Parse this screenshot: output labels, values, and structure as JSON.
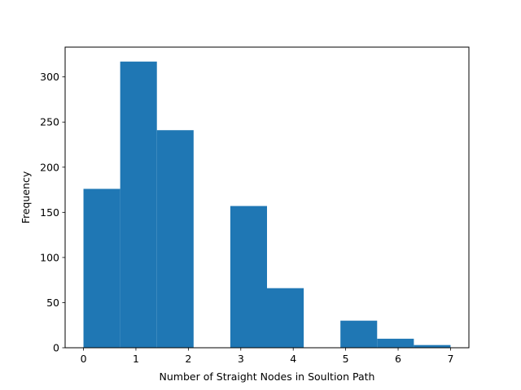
{
  "chart_data": {
    "type": "bar",
    "title": "",
    "xlabel": "Number of Straight Nodes in Soultion Path",
    "ylabel": "Frequency",
    "bins": [
      {
        "x0": 0.0,
        "x1": 0.7,
        "value": 176
      },
      {
        "x0": 0.7,
        "x1": 1.4,
        "value": 317
      },
      {
        "x0": 1.4,
        "x1": 2.1,
        "value": 241
      },
      {
        "x0": 2.1,
        "x1": 2.8,
        "value": 0
      },
      {
        "x0": 2.8,
        "x1": 3.5,
        "value": 157
      },
      {
        "x0": 3.5,
        "x1": 4.2,
        "value": 66
      },
      {
        "x0": 4.2,
        "x1": 4.9,
        "value": 0
      },
      {
        "x0": 4.9,
        "x1": 5.6,
        "value": 30
      },
      {
        "x0": 5.6,
        "x1": 6.3,
        "value": 10
      },
      {
        "x0": 6.3,
        "x1": 7.0,
        "value": 3
      }
    ],
    "xlim": [
      -0.35,
      7.35
    ],
    "ylim": [
      0,
      333
    ],
    "xticks": [
      0,
      1,
      2,
      3,
      4,
      5,
      6,
      7
    ],
    "yticks": [
      0,
      50,
      100,
      150,
      200,
      250,
      300
    ],
    "grid": false,
    "bar_color": "#1f77b4"
  }
}
